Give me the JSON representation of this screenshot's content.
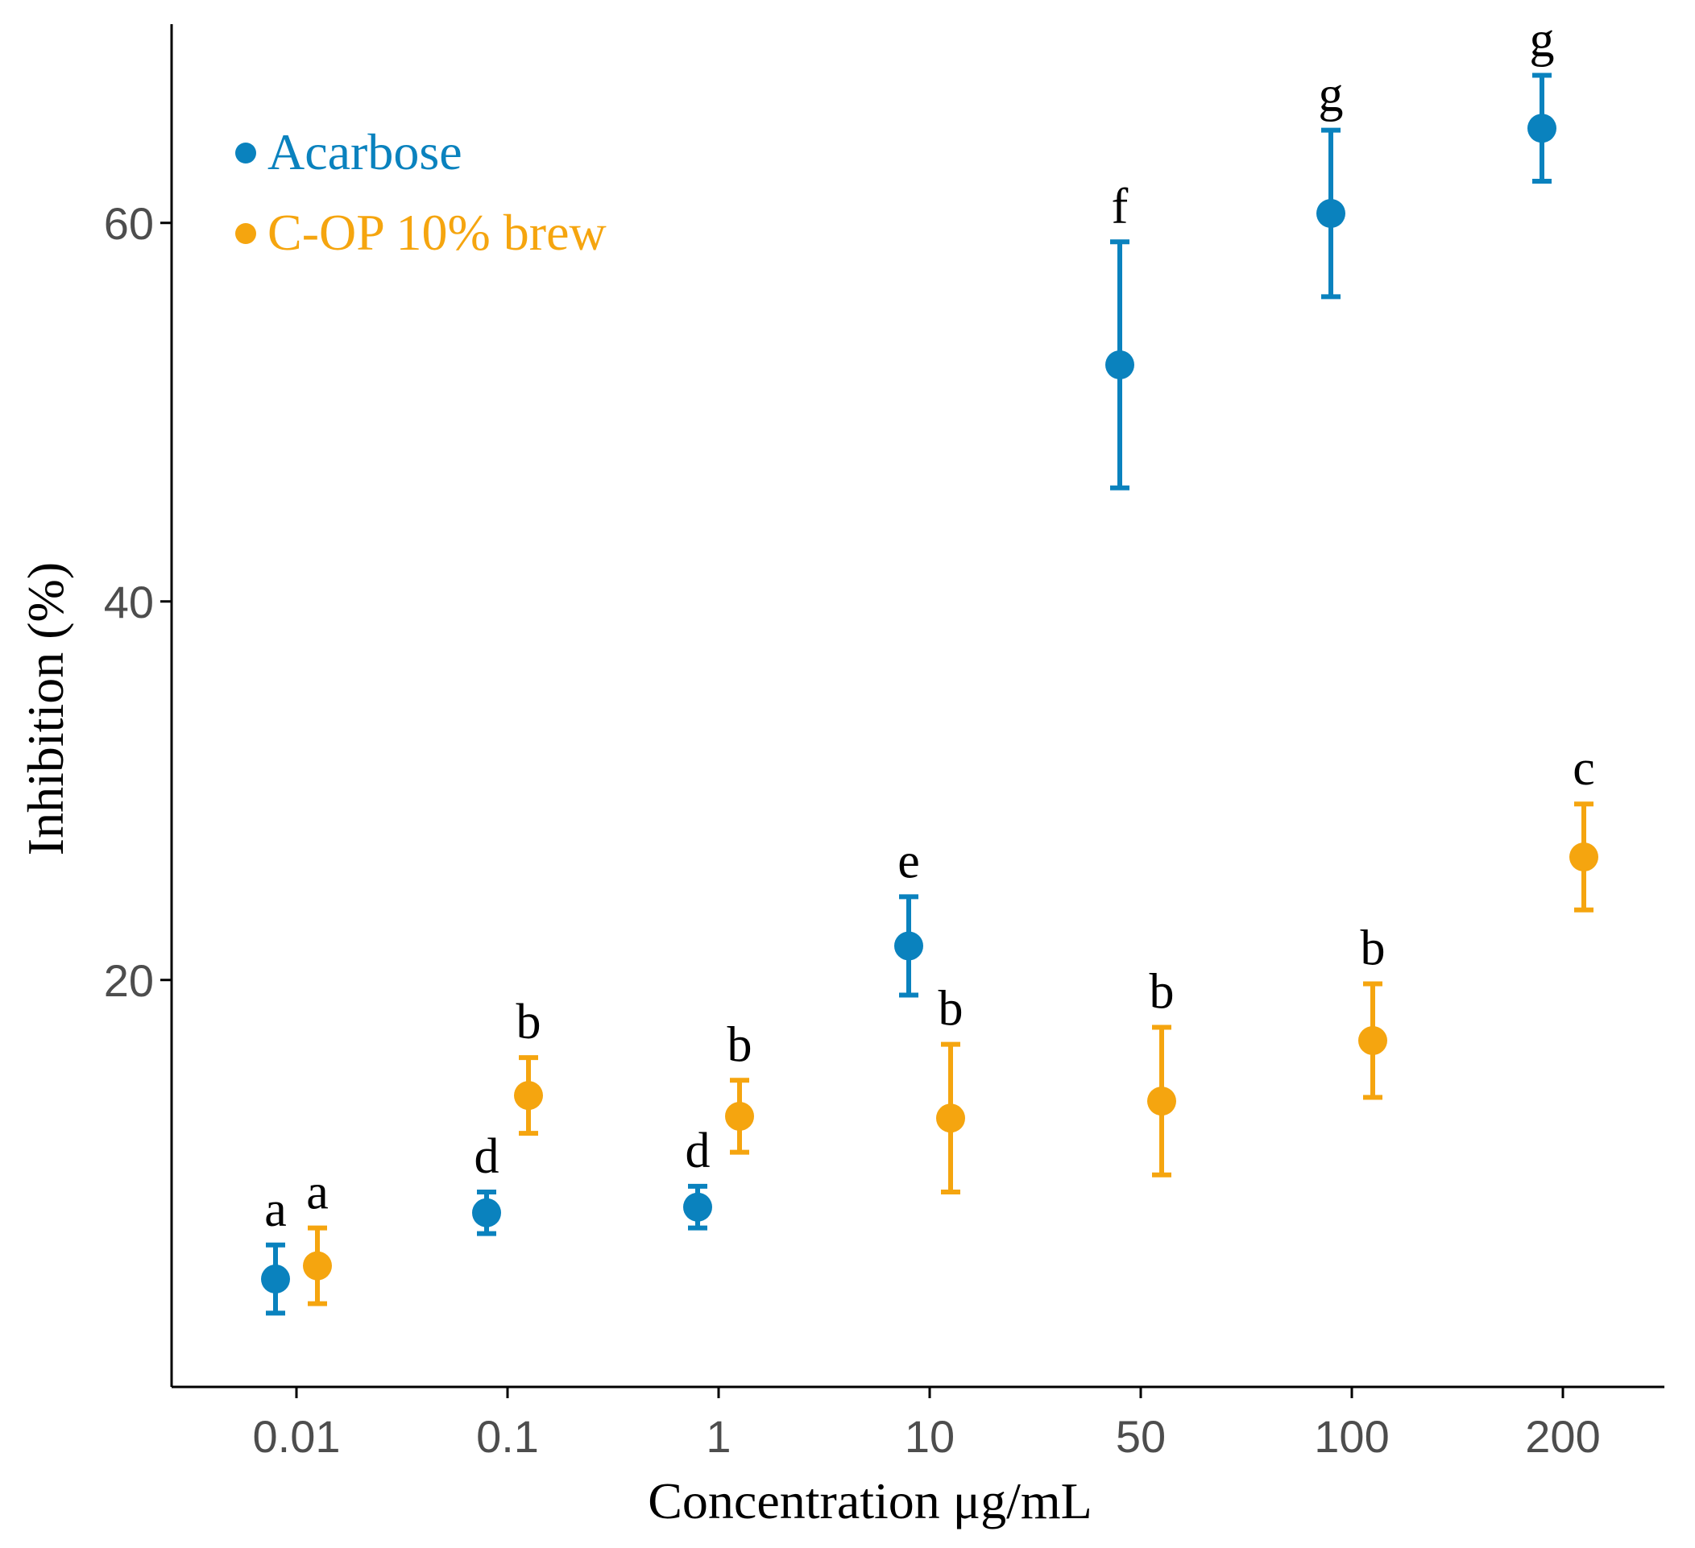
{
  "chart_data": {
    "type": "scatter",
    "title": "",
    "xlabel": "Concentration μg/mL",
    "ylabel": "Inhibition (%)",
    "categories": [
      "0.01",
      "0.1",
      "1",
      "10",
      "50",
      "100",
      "200"
    ],
    "ylim": [
      -1.5,
      70.5
    ],
    "yticks": [
      20,
      40,
      60
    ],
    "grid": false,
    "legend_position": "top-left",
    "series": [
      {
        "name": "Acarbose",
        "color": "#0a82be",
        "values": [
          4.2,
          7.7,
          8.0,
          21.8,
          52.5,
          60.5,
          65.0
        ],
        "errors": [
          1.8,
          1.1,
          1.1,
          2.6,
          6.5,
          4.4,
          2.8
        ],
        "letters": [
          "a",
          "d",
          "d",
          "e",
          "f",
          "g",
          "g"
        ]
      },
      {
        "name": "C-OP 10% brew",
        "color": "#f5a50f",
        "values": [
          4.9,
          13.9,
          12.8,
          12.7,
          13.6,
          16.8,
          26.5
        ],
        "errors": [
          2.0,
          2.0,
          1.9,
          3.9,
          3.9,
          3.0,
          2.8
        ],
        "letters": [
          "a",
          "b",
          "b",
          "b",
          "b",
          "b",
          "c"
        ]
      }
    ]
  }
}
